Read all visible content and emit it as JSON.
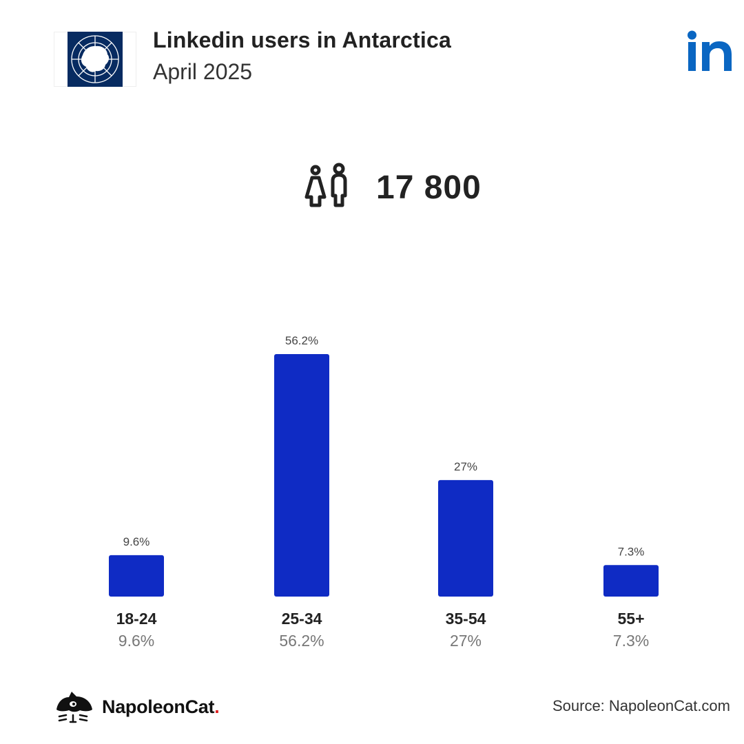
{
  "header": {
    "title": "Linkedin users in Antarctica",
    "subtitle": "April 2025"
  },
  "icons": {
    "flag": "antarctica-flag-icon",
    "platform": "linkedin-logo-icon",
    "people": "users-icon",
    "brand": "napoleoncat-logo-icon"
  },
  "colors": {
    "bar": "#0f2bc4",
    "linkedin": "#0a66c2",
    "flag_bg": "#072b61",
    "brand_dot": "#e02020"
  },
  "total": {
    "value": "17 800"
  },
  "chart_data": {
    "type": "bar",
    "categories": [
      "18-24",
      "25-34",
      "35-54",
      "55+"
    ],
    "values": [
      9.6,
      56.2,
      27,
      7.3
    ],
    "value_labels": [
      "9.6%",
      "56.2%",
      "27%",
      "7.3%"
    ],
    "ylim": [
      0,
      56.2
    ],
    "grid": false
  },
  "footer": {
    "brand_name": "NapoleonCat",
    "brand_dot": ".",
    "source": "Source: NapoleonCat.com"
  }
}
